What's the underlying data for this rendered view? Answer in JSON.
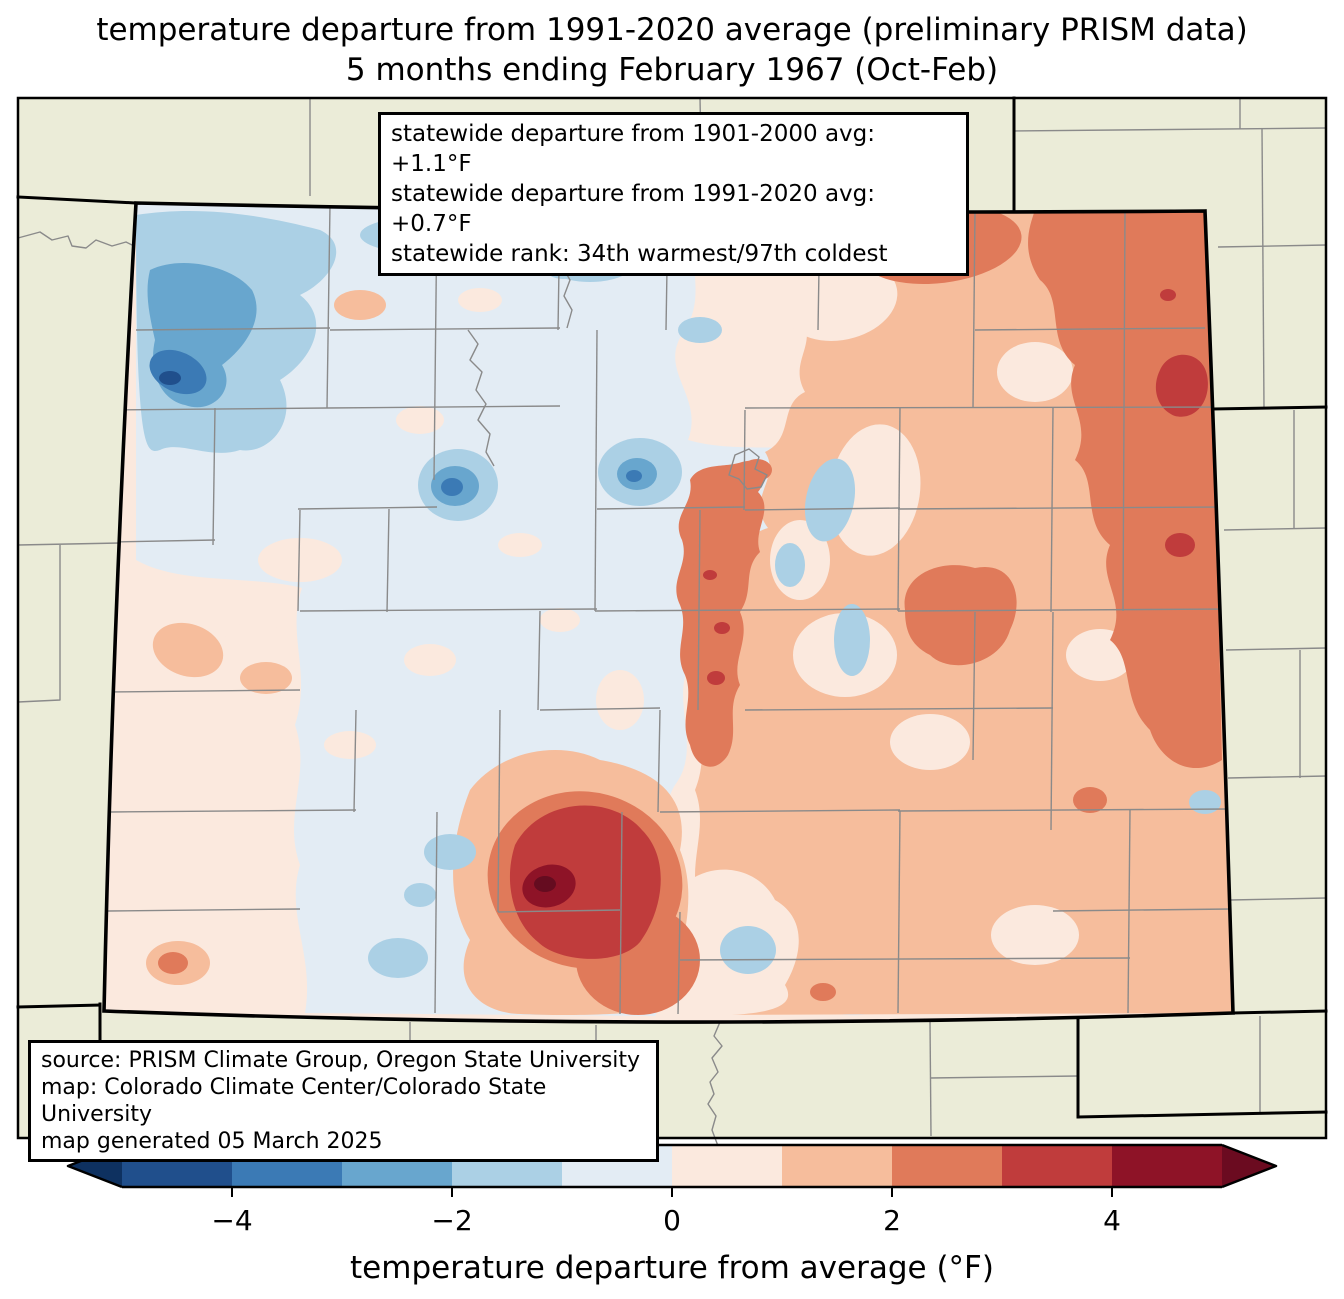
{
  "title": {
    "line1": "temperature departure from 1991-2020 average (preliminary PRISM data)",
    "line2": "5 months ending February 1967 (Oct-Feb)"
  },
  "stats_box": {
    "line1": "statewide departure from 1901-2000 avg: +1.1°F",
    "line2": "statewide departure from 1991-2020 avg: +0.7°F",
    "line3": "statewide rank: 34th warmest/97th coldest"
  },
  "source_box": {
    "line1": "source: PRISM Climate Group, Oregon State University",
    "line2": "map: Colorado Climate Center/Colorado State University",
    "line3": "map generated 05 March 2025"
  },
  "colorbar": {
    "label": "temperature departure from average (°F)",
    "range": [
      -5,
      5
    ],
    "ticks": [
      {
        "value": -4,
        "label": "−4"
      },
      {
        "value": -2,
        "label": "−2"
      },
      {
        "value": 0,
        "label": "0"
      },
      {
        "value": 2,
        "label": "2"
      },
      {
        "value": 4,
        "label": "4"
      }
    ],
    "under_color": "#0e3160",
    "over_color": "#6b0b20",
    "bin_colors": [
      "#204f8c",
      "#3b7ab5",
      "#68a6ce",
      "#abd0e5",
      "#e3ecf4",
      "#fbe9de",
      "#f6bd9c",
      "#e07a5a",
      "#c03c3c",
      "#8e1327"
    ],
    "darkest_color": "#650c20",
    "bin_edges": [
      -5,
      -4,
      -3,
      -2,
      -1,
      0,
      1,
      2,
      3,
      4,
      5
    ]
  },
  "map": {
    "region": "Colorado",
    "outside_background_color": "#ebecd8",
    "county_line_color": "#8a8a8a",
    "state_border_color": "#000000"
  }
}
